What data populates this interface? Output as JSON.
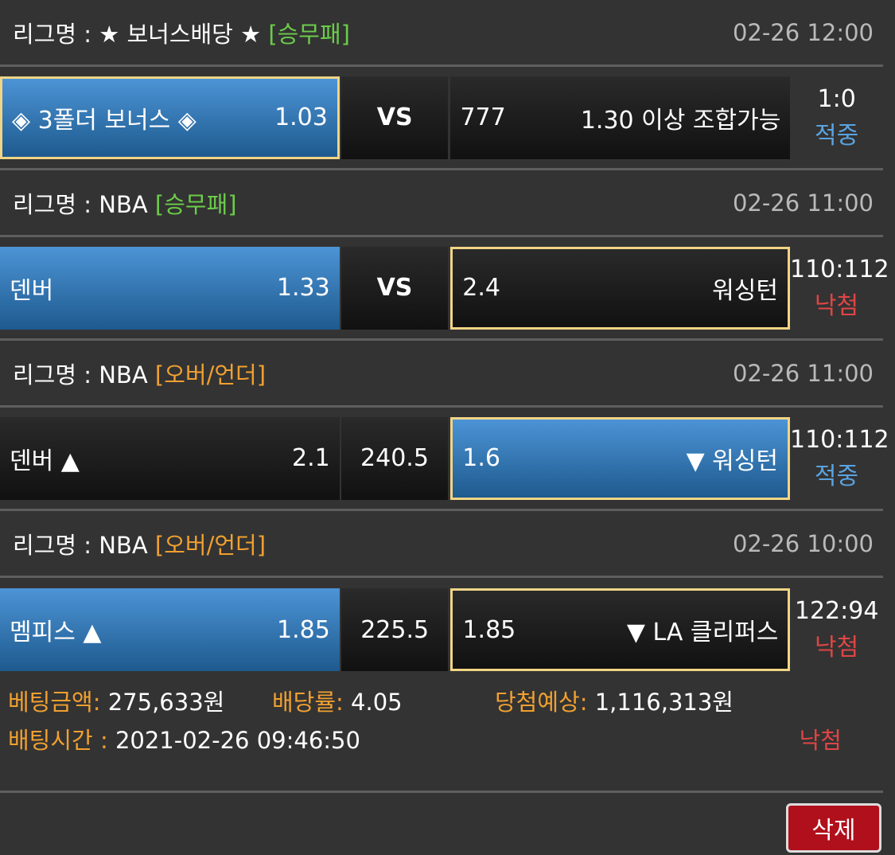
{
  "games": [
    {
      "league": "리그명 : ★ 보너스배당 ★",
      "type": "[승무패]",
      "type_color": "green",
      "time": "02-26 12:00",
      "home": "◈ 3폴더 보너스 ◈",
      "home_odds": "1.03",
      "mid": "VS",
      "away_odds": "777",
      "away": "1.30 이상 조합가능",
      "selected": "home",
      "score": "1:0",
      "result": "적중"
    },
    {
      "league": "리그명 : NBA",
      "type": "[승무패]",
      "type_color": "green",
      "time": "02-26 11:00",
      "home": "덴버",
      "home_odds": "1.33",
      "mid": "VS",
      "away_odds": "2.4",
      "away": "워싱턴",
      "selected": "away-outline",
      "score": "110:112",
      "result": "낙첨"
    },
    {
      "league": "리그명 : NBA",
      "type": "[오버/언더]",
      "type_color": "orange",
      "time": "02-26 11:00",
      "home": "덴버 ▲",
      "home_odds": "2.1",
      "mid": "240.5",
      "away_odds": "1.6",
      "away": "▼ 워싱턴",
      "selected": "away",
      "score": "110:112",
      "result": "적중"
    },
    {
      "league": "리그명 : NBA",
      "type": "[오버/언더]",
      "type_color": "orange",
      "time": "02-26 10:00",
      "home": "멤피스 ▲",
      "home_odds": "1.85",
      "mid": "225.5",
      "away_odds": "1.85",
      "away": "▼ LA 클리퍼스",
      "selected": "away-outline",
      "score": "122:94",
      "result": "낙첨"
    }
  ],
  "summary": {
    "amount_label": "베팅금액:",
    "amount": "275,633원",
    "rate_label": "배당률:",
    "rate": "4.05",
    "expected_label": "당첨예상:",
    "expected": "1,116,313원",
    "time_label": "배팅시간 :",
    "time": "2021-02-26 09:46:50",
    "result": "낙첨"
  },
  "delete_label": "삭제"
}
